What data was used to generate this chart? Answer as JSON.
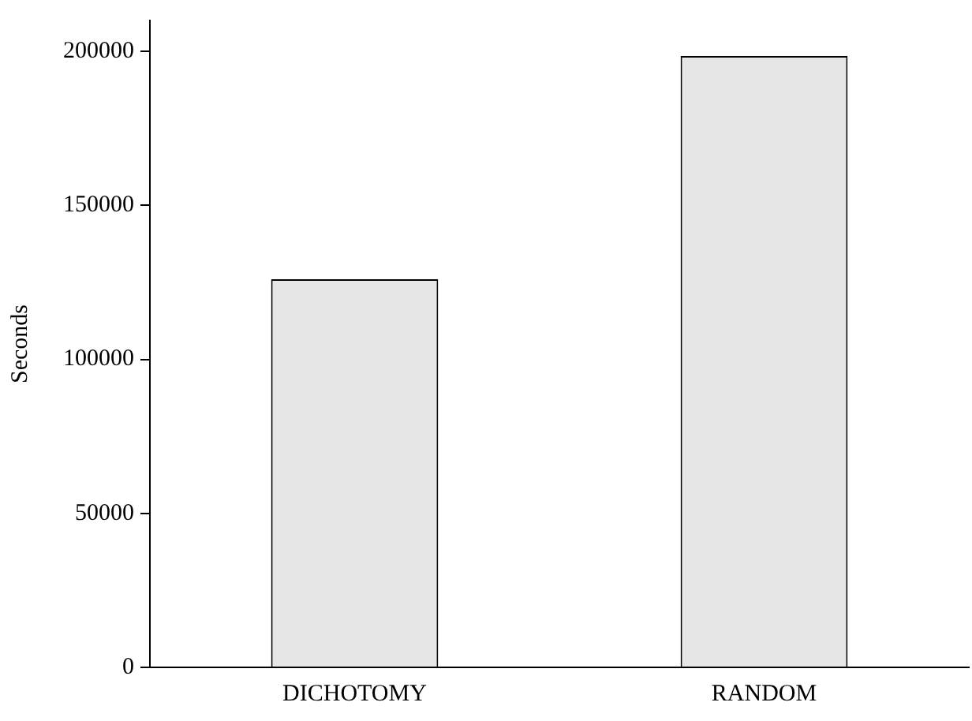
{
  "chart_data": {
    "type": "bar",
    "ylabel": "Seconds",
    "categories": [
      "DICHOTOMY",
      "RANDOM"
    ],
    "values": [
      126000,
      198500
    ],
    "color": "#e6e6e6",
    "ylim": [
      0,
      210000
    ],
    "yticks": [
      0,
      50000,
      100000,
      150000,
      200000
    ],
    "grid": false,
    "legend": false
  }
}
